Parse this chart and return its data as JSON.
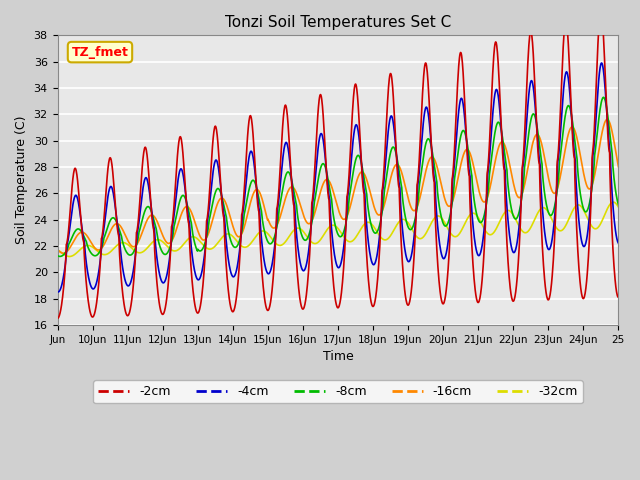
{
  "title": "Tonzi Soil Temperatures Set C",
  "xlabel": "Time",
  "ylabel": "Soil Temperature (C)",
  "ylim": [
    16,
    38
  ],
  "xlim": [
    0,
    16
  ],
  "plot_bg_color": "#e8e8e8",
  "fig_bg_color": "#d0d0d0",
  "grid_color": "white",
  "annotation_text": "TZ_fmet",
  "annotation_bg": "#ffffcc",
  "annotation_border": "#ccaa00",
  "colors": {
    "-2cm": "#cc0000",
    "-4cm": "#0000cc",
    "-8cm": "#00bb00",
    "-16cm": "#ff8800",
    "-32cm": "#dddd00"
  },
  "legend_labels": [
    "-2cm",
    "-4cm",
    "-8cm",
    "-16cm",
    "-32cm"
  ],
  "xtick_labels": [
    "Jun",
    "10Jun",
    "11Jun",
    "12Jun",
    "13Jun",
    "14Jun",
    "15Jun",
    "16Jun",
    "17Jun",
    "18Jun",
    "19Jun",
    "20Jun",
    "21Jun",
    "22Jun",
    "23Jun",
    "24Jun",
    "25"
  ],
  "ytick_values": [
    16,
    18,
    20,
    22,
    24,
    26,
    28,
    30,
    32,
    34,
    36,
    38
  ]
}
